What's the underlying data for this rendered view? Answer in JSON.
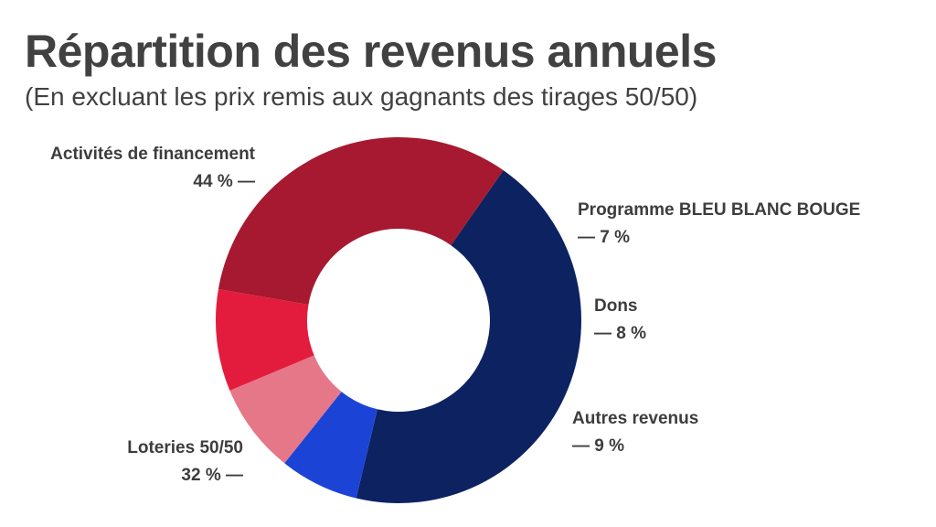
{
  "title": "Répartition des revenus annuels",
  "subtitle": "(En excluant les prix remis aux gagnants des tirages 50/50)",
  "chart_data": {
    "type": "pie",
    "title": "Répartition des revenus annuels",
    "subtitle": "(En excluant les prix remis aux gagnants des tirages 50/50)",
    "donut": true,
    "unit": "%",
    "slices": [
      {
        "label": "Activités de financement",
        "value": 44,
        "display": "44 % —",
        "color": "#0c2261"
      },
      {
        "label": "Programme BLEU BLANC BOUGE",
        "value": 7,
        "display": "— 7 %",
        "color": "#1b44d6"
      },
      {
        "label": "Dons",
        "value": 8,
        "display": "— 8 %",
        "color": "#e57788"
      },
      {
        "label": "Autres revenus",
        "value": 9,
        "display": "— 9 %",
        "color": "#e31c3d"
      },
      {
        "label": "Loteries 50/50",
        "value": 32,
        "display": "32 % —",
        "color": "#a71930"
      }
    ]
  }
}
